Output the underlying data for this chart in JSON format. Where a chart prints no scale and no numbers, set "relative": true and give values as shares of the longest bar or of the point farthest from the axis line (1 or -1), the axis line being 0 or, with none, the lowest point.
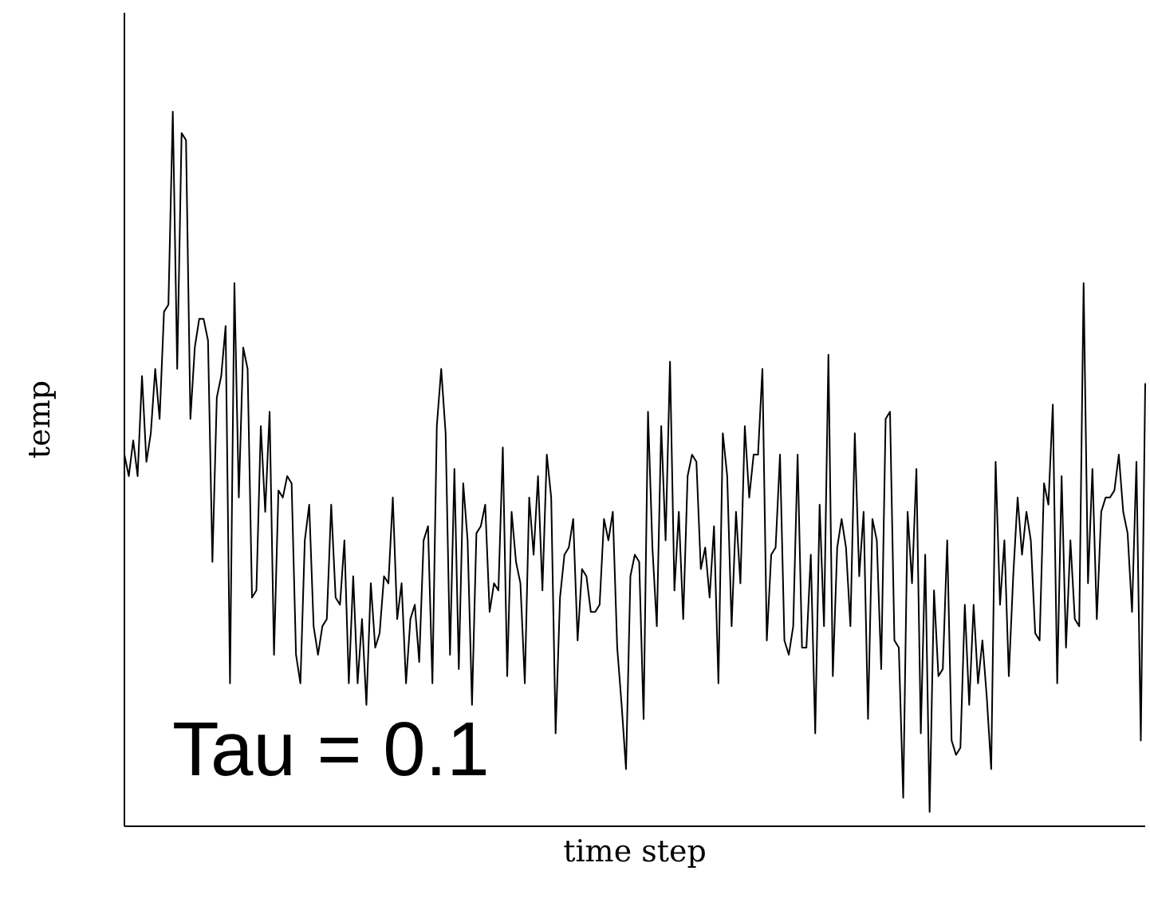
{
  "chart_data": {
    "type": "line",
    "xlabel": "time step",
    "ylabel": "temp",
    "annotations": [
      "Tau = 0.1"
    ],
    "relative": true,
    "categories": [
      null,
      null,
      null,
      null,
      null,
      null,
      null,
      null,
      null,
      null,
      null,
      null,
      null,
      null,
      null,
      null,
      null,
      null,
      null,
      null,
      null,
      null,
      null,
      null,
      null,
      null,
      null,
      null,
      null,
      null,
      null,
      null,
      null,
      null,
      null,
      null,
      null,
      null,
      null,
      null,
      null,
      null,
      null,
      null,
      null,
      null,
      null,
      null,
      null,
      null,
      null,
      null,
      null,
      null,
      null,
      null,
      null,
      null,
      null,
      null,
      null,
      null,
      null,
      null,
      null,
      null,
      null,
      null,
      null,
      null,
      null,
      null,
      null,
      null,
      null,
      null,
      null,
      null,
      null,
      null,
      null,
      null,
      null,
      null,
      null,
      null,
      null,
      null,
      null,
      null,
      null,
      null,
      null,
      null,
      null,
      null,
      null,
      null,
      null,
      null,
      null,
      null,
      null,
      null,
      null,
      null,
      null,
      null,
      null,
      null,
      null,
      null,
      null,
      null,
      null,
      null,
      null,
      null,
      null,
      null,
      null,
      null,
      null,
      null,
      null,
      null,
      null,
      null,
      null,
      null,
      null,
      null,
      null,
      null,
      null,
      null,
      null,
      null,
      null,
      null,
      null,
      null,
      null,
      null,
      null,
      null,
      null,
      null,
      null,
      null,
      null,
      null,
      null,
      null,
      null,
      null,
      null,
      null,
      null,
      null,
      null,
      null,
      null,
      null,
      null,
      null,
      null,
      null,
      null,
      null,
      null,
      null,
      null,
      null,
      null,
      null,
      null,
      null,
      null,
      null,
      null,
      null,
      null,
      null,
      null,
      null,
      null,
      null,
      null,
      null,
      null,
      null,
      null,
      null,
      null,
      null,
      null,
      null,
      null,
      null,
      null,
      null,
      null,
      null,
      null,
      null,
      null,
      null,
      null,
      null,
      null,
      null,
      null,
      null,
      null,
      null,
      null,
      null,
      null,
      null,
      null,
      null,
      null,
      null,
      null,
      null,
      null,
      null,
      null,
      null,
      null,
      null,
      null
    ],
    "series": [
      {
        "color": "#000000",
        "values": [
          0.52,
          0.49,
          0.54,
          0.49,
          0.63,
          0.51,
          0.55,
          0.64,
          0.57,
          0.72,
          0.73,
          1,
          0.64,
          0.97,
          0.96,
          0.57,
          0.67,
          0.71,
          0.71,
          0.68,
          0.37,
          0.6,
          0.63,
          0.7,
          0.2,
          0.76,
          0.46,
          0.67,
          0.64,
          0.32,
          0.33,
          0.56,
          0.44,
          0.58,
          0.24,
          0.47,
          0.46,
          0.49,
          0.48,
          0.24,
          0.2,
          0.4,
          0.45,
          0.28,
          0.24,
          0.28,
          0.29,
          0.45,
          0.32,
          0.31,
          0.4,
          0.2,
          0.35,
          0.2,
          0.29,
          0.17,
          0.34,
          0.25,
          0.27,
          0.35,
          0.34,
          0.46,
          0.29,
          0.34,
          0.2,
          0.29,
          0.31,
          0.23,
          0.4,
          0.42,
          0.2,
          0.56,
          0.64,
          0.55,
          0.24,
          0.5,
          0.22,
          0.48,
          0.4,
          0.17,
          0.41,
          0.42,
          0.45,
          0.3,
          0.34,
          0.33,
          0.53,
          0.21,
          0.44,
          0.37,
          0.34,
          0.2,
          0.46,
          0.38,
          0.49,
          0.33,
          0.52,
          0.46,
          0.13,
          0.32,
          0.38,
          0.39,
          0.43,
          0.26,
          0.36,
          0.35,
          0.3,
          0.3,
          0.31,
          0.43,
          0.4,
          0.44,
          0.25,
          0.17,
          0.08,
          0.35,
          0.38,
          0.37,
          0.15,
          0.58,
          0.39,
          0.28,
          0.56,
          0.4,
          0.65,
          0.33,
          0.44,
          0.29,
          0.49,
          0.52,
          0.51,
          0.36,
          0.39,
          0.32,
          0.42,
          0.2,
          0.55,
          0.49,
          0.28,
          0.44,
          0.34,
          0.56,
          0.46,
          0.52,
          0.52,
          0.64,
          0.26,
          0.38,
          0.39,
          0.52,
          0.26,
          0.24,
          0.28,
          0.52,
          0.25,
          0.25,
          0.38,
          0.13,
          0.45,
          0.28,
          0.66,
          0.21,
          0.39,
          0.43,
          0.39,
          0.28,
          0.55,
          0.35,
          0.44,
          0.15,
          0.43,
          0.4,
          0.22,
          0.57,
          0.58,
          0.26,
          0.25,
          0.04,
          0.44,
          0.34,
          0.5,
          0.13,
          0.38,
          0.02,
          0.33,
          0.21,
          0.22,
          0.4,
          0.12,
          0.1,
          0.11,
          0.31,
          0.17,
          0.31,
          0.2,
          0.26,
          0.18,
          0.08,
          0.51,
          0.31,
          0.4,
          0.21,
          0.35,
          0.46,
          0.38,
          0.44,
          0.4,
          0.27,
          0.26,
          0.48,
          0.45,
          0.59,
          0.2,
          0.49,
          0.25,
          0.4,
          0.29,
          0.28,
          0.76,
          0.34,
          0.5,
          0.29,
          0.44,
          0.46,
          0.46,
          0.47,
          0.52,
          0.44,
          0.41,
          0.3,
          0.51,
          0.12,
          0.62
        ]
      }
    ]
  }
}
